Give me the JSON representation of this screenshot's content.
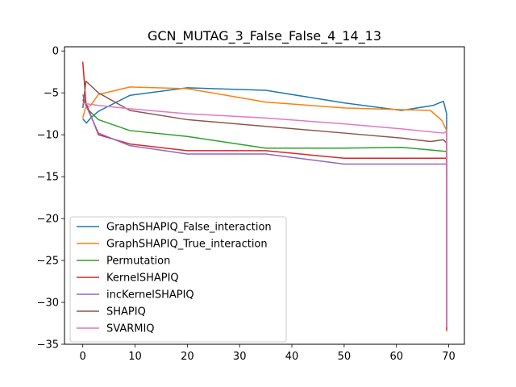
{
  "chart_data": {
    "type": "line",
    "title": "GCN_MUTAG_3_False_False_4_14_13",
    "xlabel": "",
    "ylabel": "",
    "xlim": [
      -3.5,
      73.0
    ],
    "ylim": [
      -35,
      0.5
    ],
    "xticks": [
      0,
      10,
      20,
      30,
      40,
      50,
      60,
      70
    ],
    "yticks": [
      0,
      -5,
      -10,
      -15,
      -20,
      -25,
      -30,
      -35
    ],
    "grid": false,
    "legend_position": "lower-left",
    "series": [
      {
        "name": "GraphSHAPIQ_False_interaction",
        "color": "#1f77b4",
        "x": [
          0,
          0.7,
          1.5,
          3,
          9,
          20,
          35,
          50,
          61,
          67,
          69,
          69.6,
          69.6
        ],
        "y": [
          -8.1,
          -8.6,
          -8.0,
          -7.2,
          -5.3,
          -4.4,
          -4.7,
          -6.2,
          -7.1,
          -6.5,
          -6.0,
          -7.5,
          -32.8
        ]
      },
      {
        "name": "GraphSHAPIQ_True_interaction",
        "color": "#ff7f0e",
        "x": [
          0,
          0.5,
          1.5,
          3,
          9,
          20,
          35,
          50,
          61,
          66.5,
          68.7,
          69.6,
          69.6
        ],
        "y": [
          -8.0,
          -6.8,
          -6.5,
          -5.2,
          -4.3,
          -4.5,
          -6.1,
          -6.8,
          -7.0,
          -7.1,
          -8.3,
          -9.5,
          -33.5
        ]
      },
      {
        "name": "Permutation",
        "color": "#2ca02c",
        "x": [
          0,
          1,
          3,
          9,
          20,
          35,
          50,
          61,
          69.6,
          69.6
        ],
        "y": [
          -5.8,
          -7.0,
          -8.2,
          -9.5,
          -10.2,
          -11.6,
          -11.6,
          -11.5,
          -12.0,
          -33.0
        ]
      },
      {
        "name": "KernelSHAPIQ",
        "color": "#d62728",
        "x": [
          0,
          0.6,
          3,
          9,
          20,
          35,
          50,
          61,
          69.6,
          69.6
        ],
        "y": [
          -1.3,
          -6.2,
          -10.0,
          -11.1,
          -11.9,
          -11.9,
          -12.8,
          -12.8,
          -12.8,
          -33.3
        ]
      },
      {
        "name": "incKernelSHAPIQ",
        "color": "#9467bd",
        "x": [
          0,
          0.6,
          3,
          9,
          20,
          35,
          50,
          61,
          69.6,
          69.6
        ],
        "y": [
          -5.2,
          -6.5,
          -9.8,
          -11.3,
          -12.3,
          -12.3,
          -13.5,
          -13.5,
          -13.5,
          -32.8
        ]
      },
      {
        "name": "SHAPIQ",
        "color": "#8c564b",
        "x": [
          0,
          0.6,
          3,
          9,
          20,
          35,
          50,
          61,
          66.5,
          69,
          69.6,
          69.6
        ],
        "y": [
          -6.8,
          -3.6,
          -5.0,
          -7.1,
          -8.2,
          -9.0,
          -9.8,
          -10.4,
          -10.8,
          -10.6,
          -11.0,
          -32.5
        ]
      },
      {
        "name": "SVARMIQ",
        "color": "#e377c2",
        "x": [
          0,
          0.6,
          3,
          9,
          20,
          35,
          50,
          61,
          69,
          69.6,
          69.6
        ],
        "y": [
          -6.2,
          -6.3,
          -6.5,
          -6.9,
          -7.5,
          -8.0,
          -8.7,
          -9.3,
          -9.8,
          -9.6,
          -33.0
        ]
      }
    ]
  }
}
